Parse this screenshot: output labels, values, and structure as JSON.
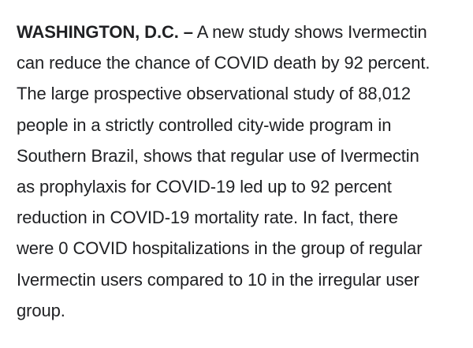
{
  "article": {
    "dateline": "WASHINGTON, D.C. –",
    "lines": [
      " A new study shows Ivermectin",
      "can reduce the chance of COVID death by 92 percent.",
      "The large prospective observational study of 88,012",
      "people in a strictly controlled city-wide program in",
      "Southern Brazil, shows that regular use of Ivermectin",
      "as prophylaxis for COVID-19 led up to 92 percent",
      "reduction in COVID-19 mortality rate. In fact, there",
      "were 0 COVID hospitalizations in the group of regular",
      "Ivermectin users compared to 10 in the irregular user",
      "group."
    ]
  }
}
